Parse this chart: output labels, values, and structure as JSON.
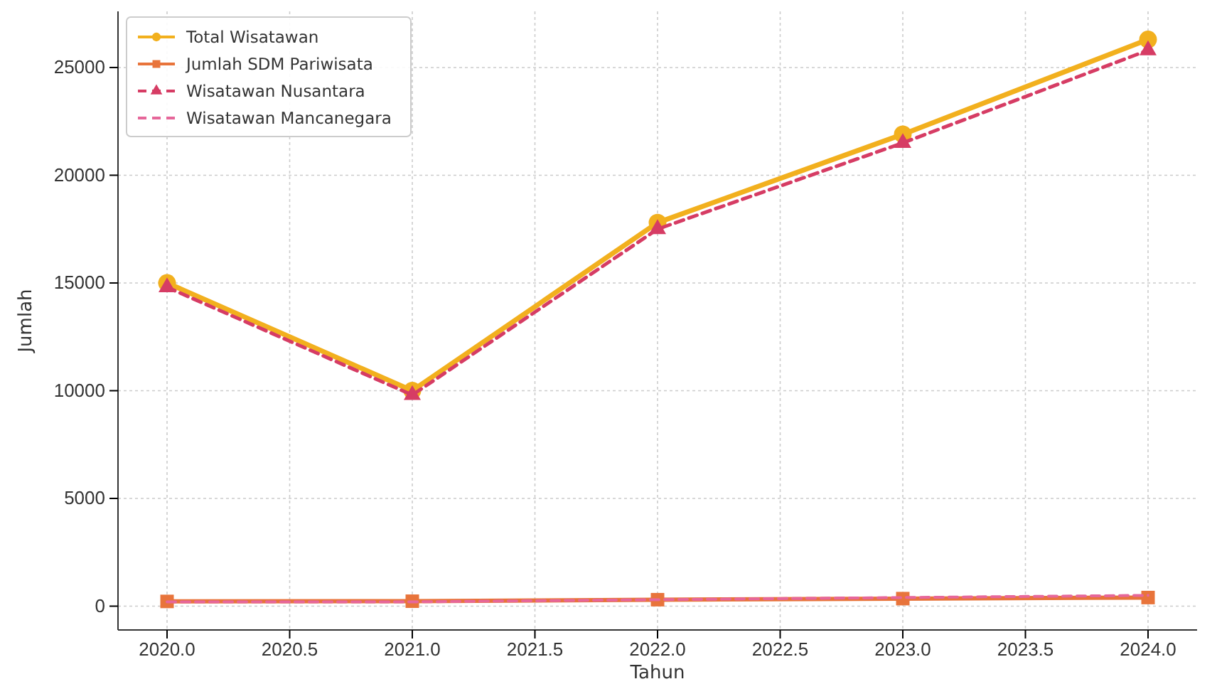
{
  "chart_data": {
    "type": "line",
    "xlabel": "Tahun",
    "ylabel": "Jumlah",
    "x": [
      2020,
      2021,
      2022,
      2023,
      2024
    ],
    "series": [
      {
        "name": "Total Wisatawan",
        "color": "#f2b01e",
        "marker": "circle",
        "line_style": "solid",
        "values": [
          15000,
          10000,
          17800,
          21900,
          26300
        ]
      },
      {
        "name": "Jumlah SDM Pariwisata",
        "color": "#e8743b",
        "marker": "square",
        "line_style": "solid",
        "values": [
          220,
          230,
          300,
          350,
          400
        ]
      },
      {
        "name": "Wisatawan Nusantara",
        "color": "#d63c64",
        "marker": "triangle",
        "line_style": "dashed",
        "values": [
          14800,
          9800,
          17500,
          21500,
          25800
        ]
      },
      {
        "name": "Wisatawan Mancanegara",
        "color": "#e6679a",
        "marker": "none",
        "line_style": "dashed",
        "values": [
          200,
          200,
          300,
          400,
          500
        ]
      }
    ],
    "xlim": [
      2019.8,
      2024.2
    ],
    "ylim": [
      -1105,
      27605
    ],
    "xticks": [
      {
        "value": 2020,
        "label": "2020.0"
      },
      {
        "value": 2020.5,
        "label": "2020.5"
      },
      {
        "value": 2021,
        "label": "2021.0"
      },
      {
        "value": 2021.5,
        "label": "2021.5"
      },
      {
        "value": 2022,
        "label": "2022.0"
      },
      {
        "value": 2022.5,
        "label": "2022.5"
      },
      {
        "value": 2023,
        "label": "2023.0"
      },
      {
        "value": 2023.5,
        "label": "2023.5"
      },
      {
        "value": 2024,
        "label": "2024.0"
      }
    ],
    "yticks": [
      0,
      5000,
      10000,
      15000,
      20000,
      25000
    ],
    "grid": true,
    "legend": "top left"
  }
}
